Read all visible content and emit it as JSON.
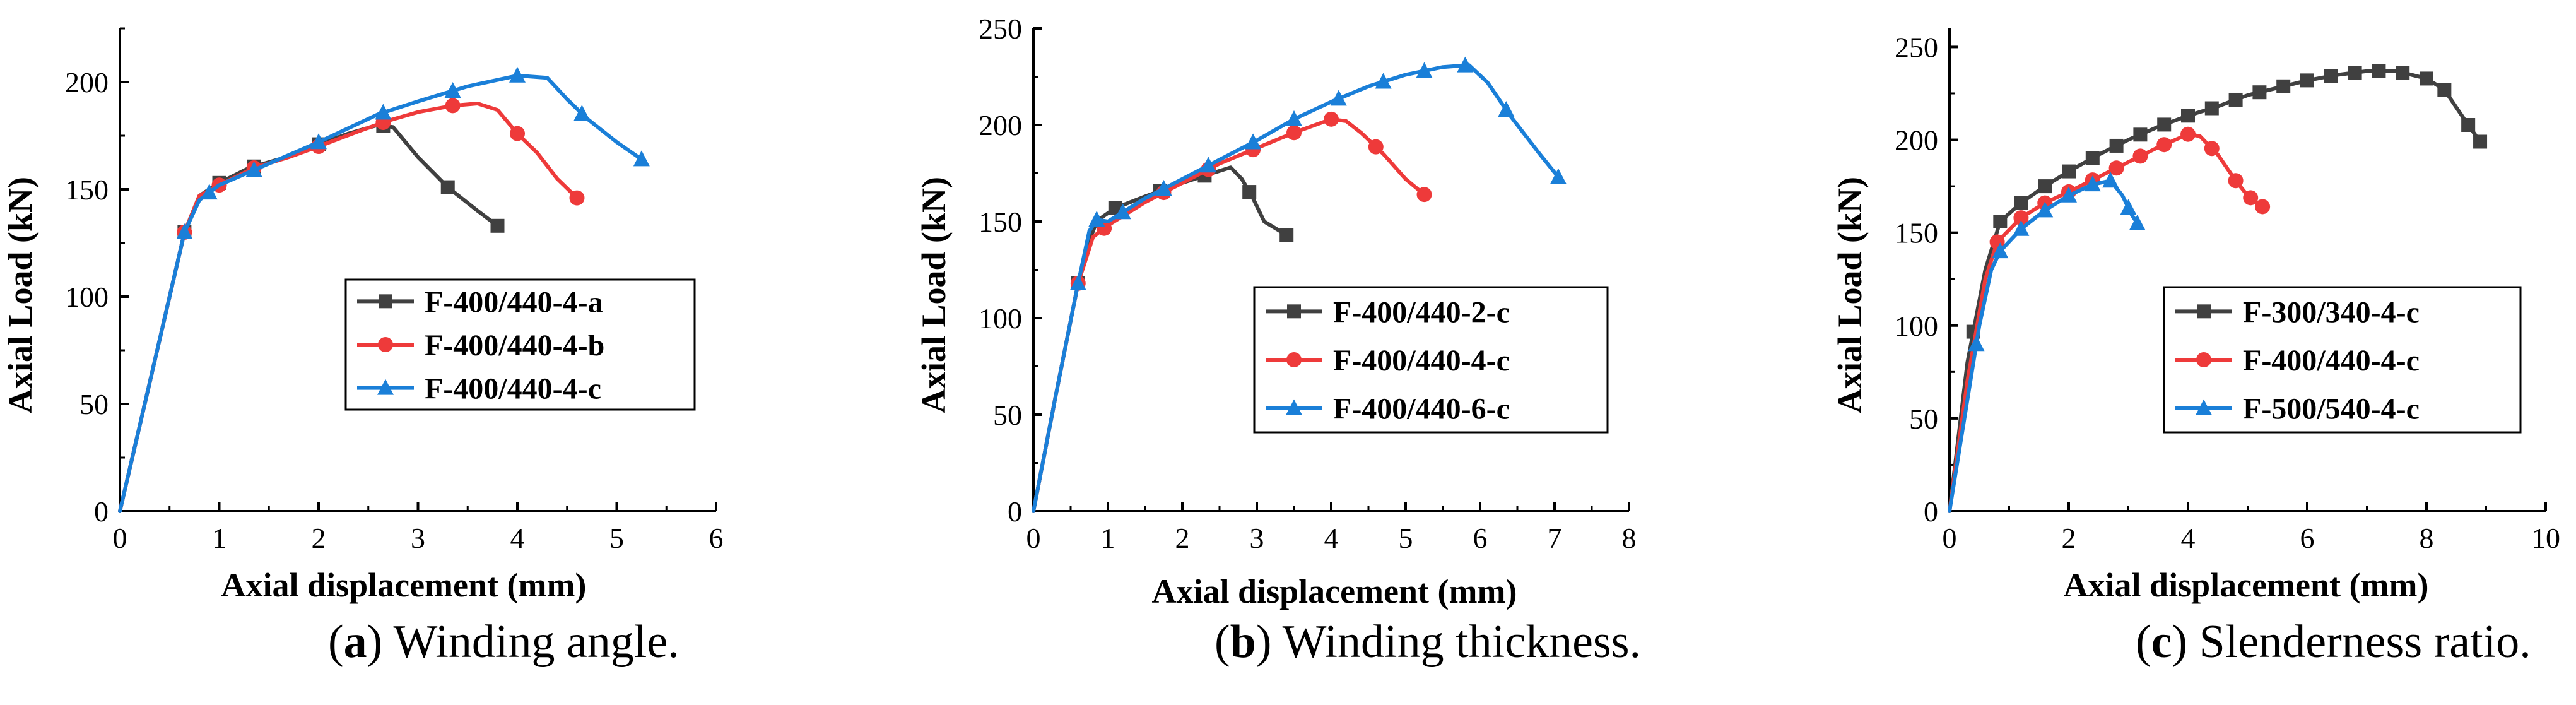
{
  "figure": {
    "captions": [
      {
        "letter": "a",
        "pre": "(",
        "post": ") Winding angle."
      },
      {
        "letter": "b",
        "pre": "(",
        "post": ") Winding thickness."
      },
      {
        "letter": "c",
        "pre": "(",
        "post": ") Slenderness ratio."
      }
    ]
  },
  "chart_data": [
    {
      "type": "line",
      "title": "",
      "xlabel": "Axial displacement (mm)",
      "ylabel": "Axial Load (kN)",
      "xlim": [
        0,
        6
      ],
      "ylim": [
        0,
        225
      ],
      "xticks": [
        0,
        1,
        2,
        3,
        4,
        5,
        6
      ],
      "yticks": [
        0,
        50,
        100,
        150,
        200
      ],
      "legend_position": "center-right",
      "series": [
        {
          "name": "F-400/440-4-a",
          "color": "#404040",
          "marker": "square",
          "x": [
            0,
            0.3,
            0.65,
            0.8,
            1.0,
            1.3,
            1.6,
            2.0,
            2.3,
            2.6,
            2.75,
            3.0,
            3.3,
            3.6,
            3.8
          ],
          "y": [
            0,
            60,
            130,
            147,
            153,
            160,
            164,
            171,
            176,
            180,
            179,
            165,
            151,
            140,
            133
          ],
          "markers_x": [
            0.65,
            1.0,
            1.35,
            2.0,
            2.65,
            3.3,
            3.8
          ]
        },
        {
          "name": "F-400/440-4-b",
          "color": "#ee3a3a",
          "marker": "circle",
          "x": [
            0,
            0.3,
            0.65,
            0.8,
            1.0,
            1.35,
            1.7,
            2.0,
            2.4,
            2.7,
            3.0,
            3.35,
            3.6,
            3.8,
            4.0,
            4.2,
            4.4,
            4.6
          ],
          "y": [
            0,
            60,
            130,
            147,
            152,
            160,
            165,
            170,
            177,
            182,
            186,
            189,
            190,
            187,
            176,
            167,
            155,
            146
          ],
          "markers_x": [
            0.65,
            1.0,
            1.35,
            2.0,
            2.65,
            3.35,
            4.0,
            4.6
          ]
        },
        {
          "name": "F-400/440-4-c",
          "color": "#1a7fd8",
          "marker": "triangle",
          "x": [
            0,
            0.3,
            0.65,
            0.8,
            1.0,
            1.35,
            2.0,
            2.6,
            3.0,
            3.5,
            4.0,
            4.3,
            4.5,
            4.7,
            5.0,
            5.25
          ],
          "y": [
            0,
            60,
            130,
            145,
            152,
            159,
            172,
            185,
            191,
            198,
            203,
            202,
            192,
            183,
            172,
            164
          ],
          "markers_x": [
            0.65,
            0.9,
            1.35,
            2.0,
            2.65,
            3.35,
            4.0,
            4.65,
            5.25
          ]
        }
      ]
    },
    {
      "type": "line",
      "title": "",
      "xlabel": "Axial displacement (mm)",
      "ylabel": "Axial Load (kN)",
      "xlim": [
        0,
        8
      ],
      "ylim": [
        0,
        250
      ],
      "xticks": [
        0,
        1,
        2,
        3,
        4,
        5,
        6,
        7,
        8
      ],
      "yticks": [
        0,
        50,
        100,
        150,
        200,
        250
      ],
      "legend_position": "center-right",
      "series": [
        {
          "name": "F-400/440-2-c",
          "color": "#404040",
          "marker": "square",
          "x": [
            0,
            0.3,
            0.6,
            0.75,
            0.85,
            0.95,
            1.1,
            1.5,
            2.0,
            2.4,
            2.65,
            2.8,
            2.95,
            3.1,
            3.4
          ],
          "y": [
            0,
            60,
            118,
            140,
            150,
            153,
            157,
            163,
            170,
            175,
            178,
            172,
            162,
            150,
            143
          ],
          "markers_x": [
            0.6,
            1.1,
            1.7,
            2.3,
            2.9,
            3.4
          ]
        },
        {
          "name": "F-400/440-4-c",
          "color": "#ee3a3a",
          "marker": "circle",
          "x": [
            0,
            0.3,
            0.6,
            0.8,
            1.0,
            1.5,
            2.0,
            2.5,
            3.0,
            3.5,
            4.0,
            4.2,
            4.4,
            4.7,
            5.0,
            5.25
          ],
          "y": [
            0,
            60,
            118,
            142,
            148,
            160,
            170,
            180,
            188,
            196,
            203,
            202,
            196,
            185,
            172,
            164
          ],
          "markers_x": [
            0.6,
            0.95,
            1.75,
            2.35,
            2.95,
            3.5,
            4.0,
            4.6,
            5.25
          ]
        },
        {
          "name": "F-400/440-6-c",
          "color": "#1a7fd8",
          "marker": "triangle",
          "x": [
            0,
            0.3,
            0.6,
            0.75,
            0.85,
            1.0,
            1.5,
            2.0,
            2.5,
            3.0,
            3.5,
            4.0,
            4.5,
            5.0,
            5.5,
            5.85,
            6.1,
            6.4,
            6.8,
            7.05
          ],
          "y": [
            0,
            60,
            118,
            145,
            151,
            150,
            162,
            172,
            182,
            192,
            203,
            212,
            220,
            226,
            230,
            231,
            222,
            205,
            185,
            173
          ],
          "markers_x": [
            0.6,
            0.85,
            1.2,
            1.75,
            2.35,
            2.95,
            3.5,
            4.1,
            4.7,
            5.25,
            5.8,
            6.35,
            7.05
          ]
        }
      ]
    },
    {
      "type": "line",
      "title": "",
      "xlabel": "Axial displacement (mm)",
      "ylabel": "Axial Load (kN)",
      "xlim": [
        0,
        10
      ],
      "ylim": [
        0,
        260
      ],
      "xticks": [
        0,
        2,
        4,
        6,
        8,
        10
      ],
      "yticks": [
        0,
        50,
        100,
        150,
        200,
        250
      ],
      "legend_position": "bottom-right",
      "series": [
        {
          "name": "F-300/340-4-c",
          "color": "#404040",
          "marker": "square",
          "x": [
            0,
            0.3,
            0.6,
            0.85,
            1.2,
            1.6,
            2.0,
            2.5,
            3.0,
            3.5,
            4.0,
            4.5,
            5.0,
            5.5,
            6.0,
            6.5,
            7.0,
            7.5,
            8.0,
            8.3,
            8.7,
            8.9
          ],
          "y": [
            0,
            80,
            130,
            156,
            166,
            175,
            183,
            192,
            200,
            207,
            213,
            218,
            224,
            228,
            232,
            235,
            237,
            237,
            233,
            227,
            208,
            199
          ],
          "markers_x": [
            0.4,
            0.85,
            1.2,
            1.6,
            2.0,
            2.4,
            2.8,
            3.2,
            3.6,
            4.0,
            4.4,
            4.8,
            5.2,
            5.6,
            6.0,
            6.4,
            6.8,
            7.2,
            7.6,
            8.0,
            8.3,
            8.7,
            8.9
          ]
        },
        {
          "name": "F-400/440-4-c",
          "color": "#ee3a3a",
          "marker": "circle",
          "x": [
            0,
            0.3,
            0.6,
            0.8,
            1.2,
            1.6,
            2.0,
            2.5,
            3.0,
            3.5,
            4.0,
            4.2,
            4.5,
            4.8,
            5.0,
            5.25
          ],
          "y": [
            0,
            70,
            125,
            145,
            158,
            166,
            172,
            180,
            188,
            196,
            203,
            202,
            192,
            178,
            170,
            164
          ],
          "markers_x": [
            0.8,
            1.2,
            1.6,
            2.0,
            2.4,
            2.8,
            3.2,
            3.6,
            4.0,
            4.4,
            4.8,
            5.05,
            5.25
          ]
        },
        {
          "name": "F-500/540-4-c",
          "color": "#1a7fd8",
          "marker": "triangle",
          "x": [
            0,
            0.2,
            0.5,
            0.7,
            0.85,
            1.2,
            1.6,
            2.0,
            2.4,
            2.7,
            2.9,
            3.05,
            3.15
          ],
          "y": [
            0,
            40,
            100,
            130,
            140,
            152,
            162,
            170,
            176,
            178,
            170,
            160,
            155
          ],
          "markers_x": [
            0.45,
            0.85,
            1.2,
            1.6,
            2.0,
            2.4,
            2.7,
            3.0,
            3.15
          ]
        }
      ]
    }
  ]
}
